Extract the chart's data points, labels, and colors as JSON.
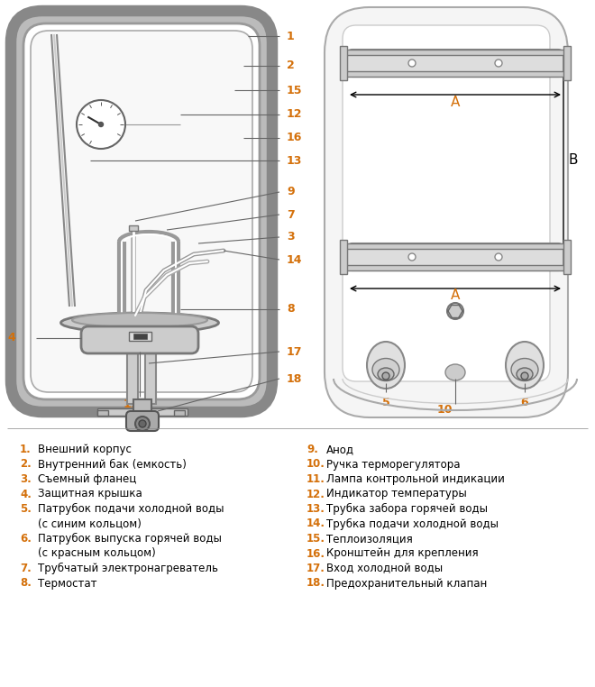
{
  "bg_color": "#ffffff",
  "orange": "#d4700a",
  "black": "#000000",
  "gray1": "#888888",
  "gray2": "#aaaaaa",
  "gray3": "#cccccc",
  "gray4": "#dddddd",
  "gray5": "#f0f0f0",
  "legend_left": [
    [
      "1.",
      "Внешний корпус"
    ],
    [
      "2.",
      "Внутренний бак (емкость)"
    ],
    [
      "3.",
      "Съемный фланец"
    ],
    [
      "4.",
      "Защитная крышка"
    ],
    [
      "5.",
      "Патрубок подачи холодной воды"
    ],
    [
      "",
      "(с синим кольцом)"
    ],
    [
      "6.",
      "Патрубок выпуска горячей воды"
    ],
    [
      "",
      "(с красным кольцом)"
    ],
    [
      "7.",
      "Трубчатый электронагреватель"
    ],
    [
      "8.",
      "Термостат"
    ]
  ],
  "legend_right": [
    [
      "9.",
      "Анод"
    ],
    [
      "10.",
      "Ручка терморегулятора"
    ],
    [
      "11.",
      "Лампа контрольной индикации"
    ],
    [
      "12.",
      "Индикатор температуры"
    ],
    [
      "13.",
      "Трубка забора горячей воды"
    ],
    [
      "14.",
      "Трубка подачи холодной воды"
    ],
    [
      "15.",
      "Теплоизоляция"
    ],
    [
      "16.",
      "Кронштейн для крепления"
    ],
    [
      "17.",
      "Вход холодной воды"
    ],
    [
      "18.",
      "Предохранительный клапан"
    ]
  ]
}
